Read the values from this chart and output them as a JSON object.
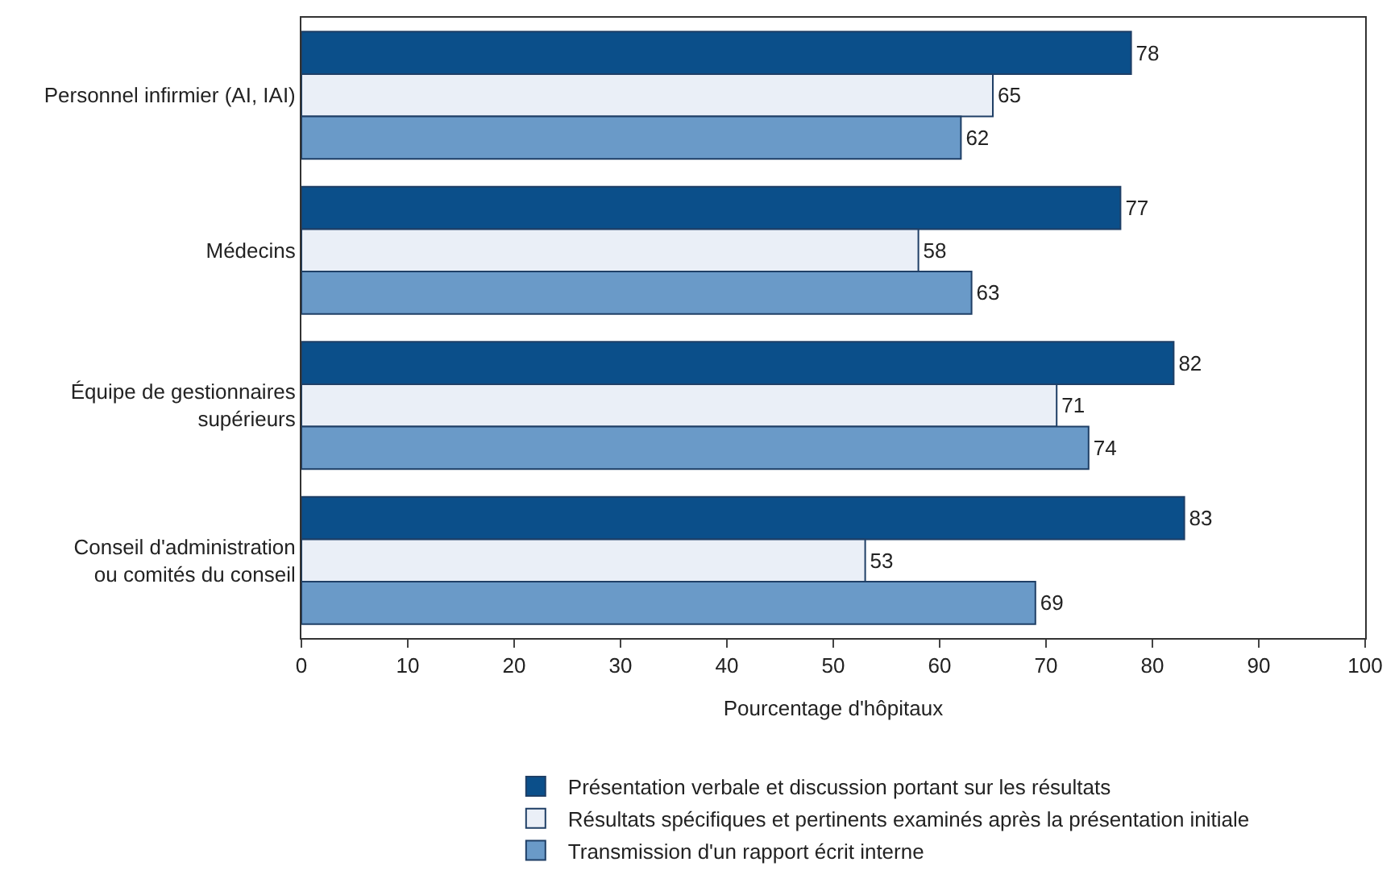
{
  "chart_data": {
    "type": "bar",
    "orientation": "horizontal",
    "xlabel": "Pourcentage d'hôpitaux",
    "categories": [
      "Personnel infirmier (AI, IAI)",
      "Médecins",
      "Équipe de gestionnaires\nsupérieurs",
      "Conseil d'administration\nou comités du conseil"
    ],
    "series": [
      {
        "name": "Présentation verbale et discussion portant sur les résultats",
        "color": "#0b4f8a",
        "values": [
          78,
          77,
          82,
          83
        ]
      },
      {
        "name": "Résultats spécifiques et pertinents examinés après la présentation initiale",
        "color": "#eaeff7",
        "values": [
          65,
          58,
          71,
          53
        ]
      },
      {
        "name": "Transmission d'un rapport écrit interne",
        "color": "#6a9ac8",
        "values": [
          62,
          63,
          74,
          69
        ]
      }
    ],
    "xlim": [
      0,
      100
    ],
    "xticks": [
      0,
      10,
      20,
      30,
      40,
      50,
      60,
      70,
      80,
      90,
      100
    ],
    "grid": false,
    "legend": "bottom",
    "data_labels": true
  }
}
